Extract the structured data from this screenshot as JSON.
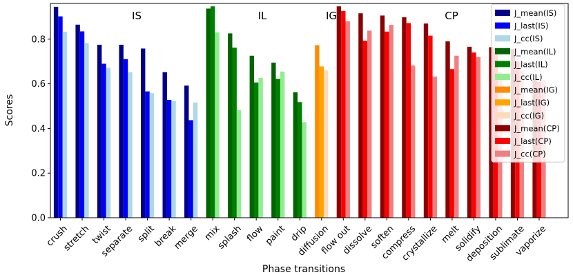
{
  "chart_data": {
    "type": "bar",
    "xlabel": "Phase transitions",
    "ylabel": "Scores",
    "ylim": [
      0,
      0.96
    ],
    "yticks": [
      0.0,
      0.2,
      0.4,
      0.6,
      0.8
    ],
    "ytick_labels": [
      "0.0",
      "0.2",
      "0.4",
      "0.6",
      "0.8"
    ],
    "legend_position": "top-right",
    "categories": [
      "crush",
      "stretch",
      "twist",
      "separate",
      "split",
      "break",
      "merge",
      "mix",
      "splash",
      "flow",
      "paint",
      "drip",
      "diffusion",
      "flow out",
      "dissolve",
      "soften",
      "compress",
      "crystallize",
      "melt",
      "solidify",
      "deposition",
      "sublimate",
      "vaporize"
    ],
    "groups": [
      {
        "label": "IS",
        "categories": [
          "crush",
          "stretch",
          "twist",
          "separate",
          "split",
          "break",
          "merge"
        ],
        "series": [
          {
            "name": "J_mean(IS)",
            "color": "#00008b",
            "values": [
              0.945,
              0.865,
              0.775,
              0.775,
              0.758,
              0.652,
              0.592
            ]
          },
          {
            "name": "J_last(IS)",
            "color": "#0000ff",
            "values": [
              0.902,
              0.835,
              0.69,
              0.71,
              0.566,
              0.528,
              0.437
            ]
          },
          {
            "name": "J_cc(IS)",
            "color": "#add8e6",
            "values": [
              0.833,
              0.783,
              0.672,
              0.652,
              0.558,
              0.524,
              0.516
            ]
          }
        ]
      },
      {
        "label": "IL",
        "categories": [
          "mix",
          "splash",
          "flow",
          "paint",
          "drip"
        ],
        "series": [
          {
            "name": "J_mean(IL)",
            "color": "#006400",
            "values": [
              0.937,
              0.826,
              0.726,
              0.695,
              0.562
            ]
          },
          {
            "name": "J_last(IL)",
            "color": "#008000",
            "values": [
              0.947,
              0.762,
              0.606,
              0.622,
              0.518
            ]
          },
          {
            "name": "J_cc(IL)",
            "color": "#90ee90",
            "values": [
              0.83,
              0.482,
              0.627,
              0.655,
              0.428
            ]
          }
        ]
      },
      {
        "label": "IG",
        "categories": [
          "diffusion"
        ],
        "series": [
          {
            "name": "J_mean(IG)",
            "color": "#ff8c00",
            "values": [
              0.773
            ]
          },
          {
            "name": "J_last(IG)",
            "color": "#ffa500",
            "values": [
              0.678
            ]
          },
          {
            "name": "J_cc(IG)",
            "color": "#ffdab9",
            "values": [
              0.66
            ]
          }
        ]
      },
      {
        "label": "CP",
        "categories": [
          "flow out",
          "dissolve",
          "soften",
          "compress",
          "crystallize",
          "melt",
          "solidify",
          "deposition",
          "sublimate",
          "vaporize"
        ],
        "series": [
          {
            "name": "J_mean(CP)",
            "color": "#8b0000",
            "values": [
              0.947,
              0.916,
              0.906,
              0.898,
              0.87,
              0.79,
              0.766,
              0.764,
              0.756,
              0.62
            ]
          },
          {
            "name": "J_last(CP)",
            "color": "#ff0000",
            "values": [
              0.926,
              0.793,
              0.834,
              0.872,
              0.816,
              0.666,
              0.74,
              0.758,
              0.7,
              0.608
            ]
          },
          {
            "name": "J_cc(CP)",
            "color": "#f08080",
            "values": [
              0.88,
              0.838,
              0.864,
              0.682,
              0.632,
              0.726,
              0.72,
              0.652,
              0.66,
              0.616
            ]
          }
        ]
      }
    ]
  }
}
